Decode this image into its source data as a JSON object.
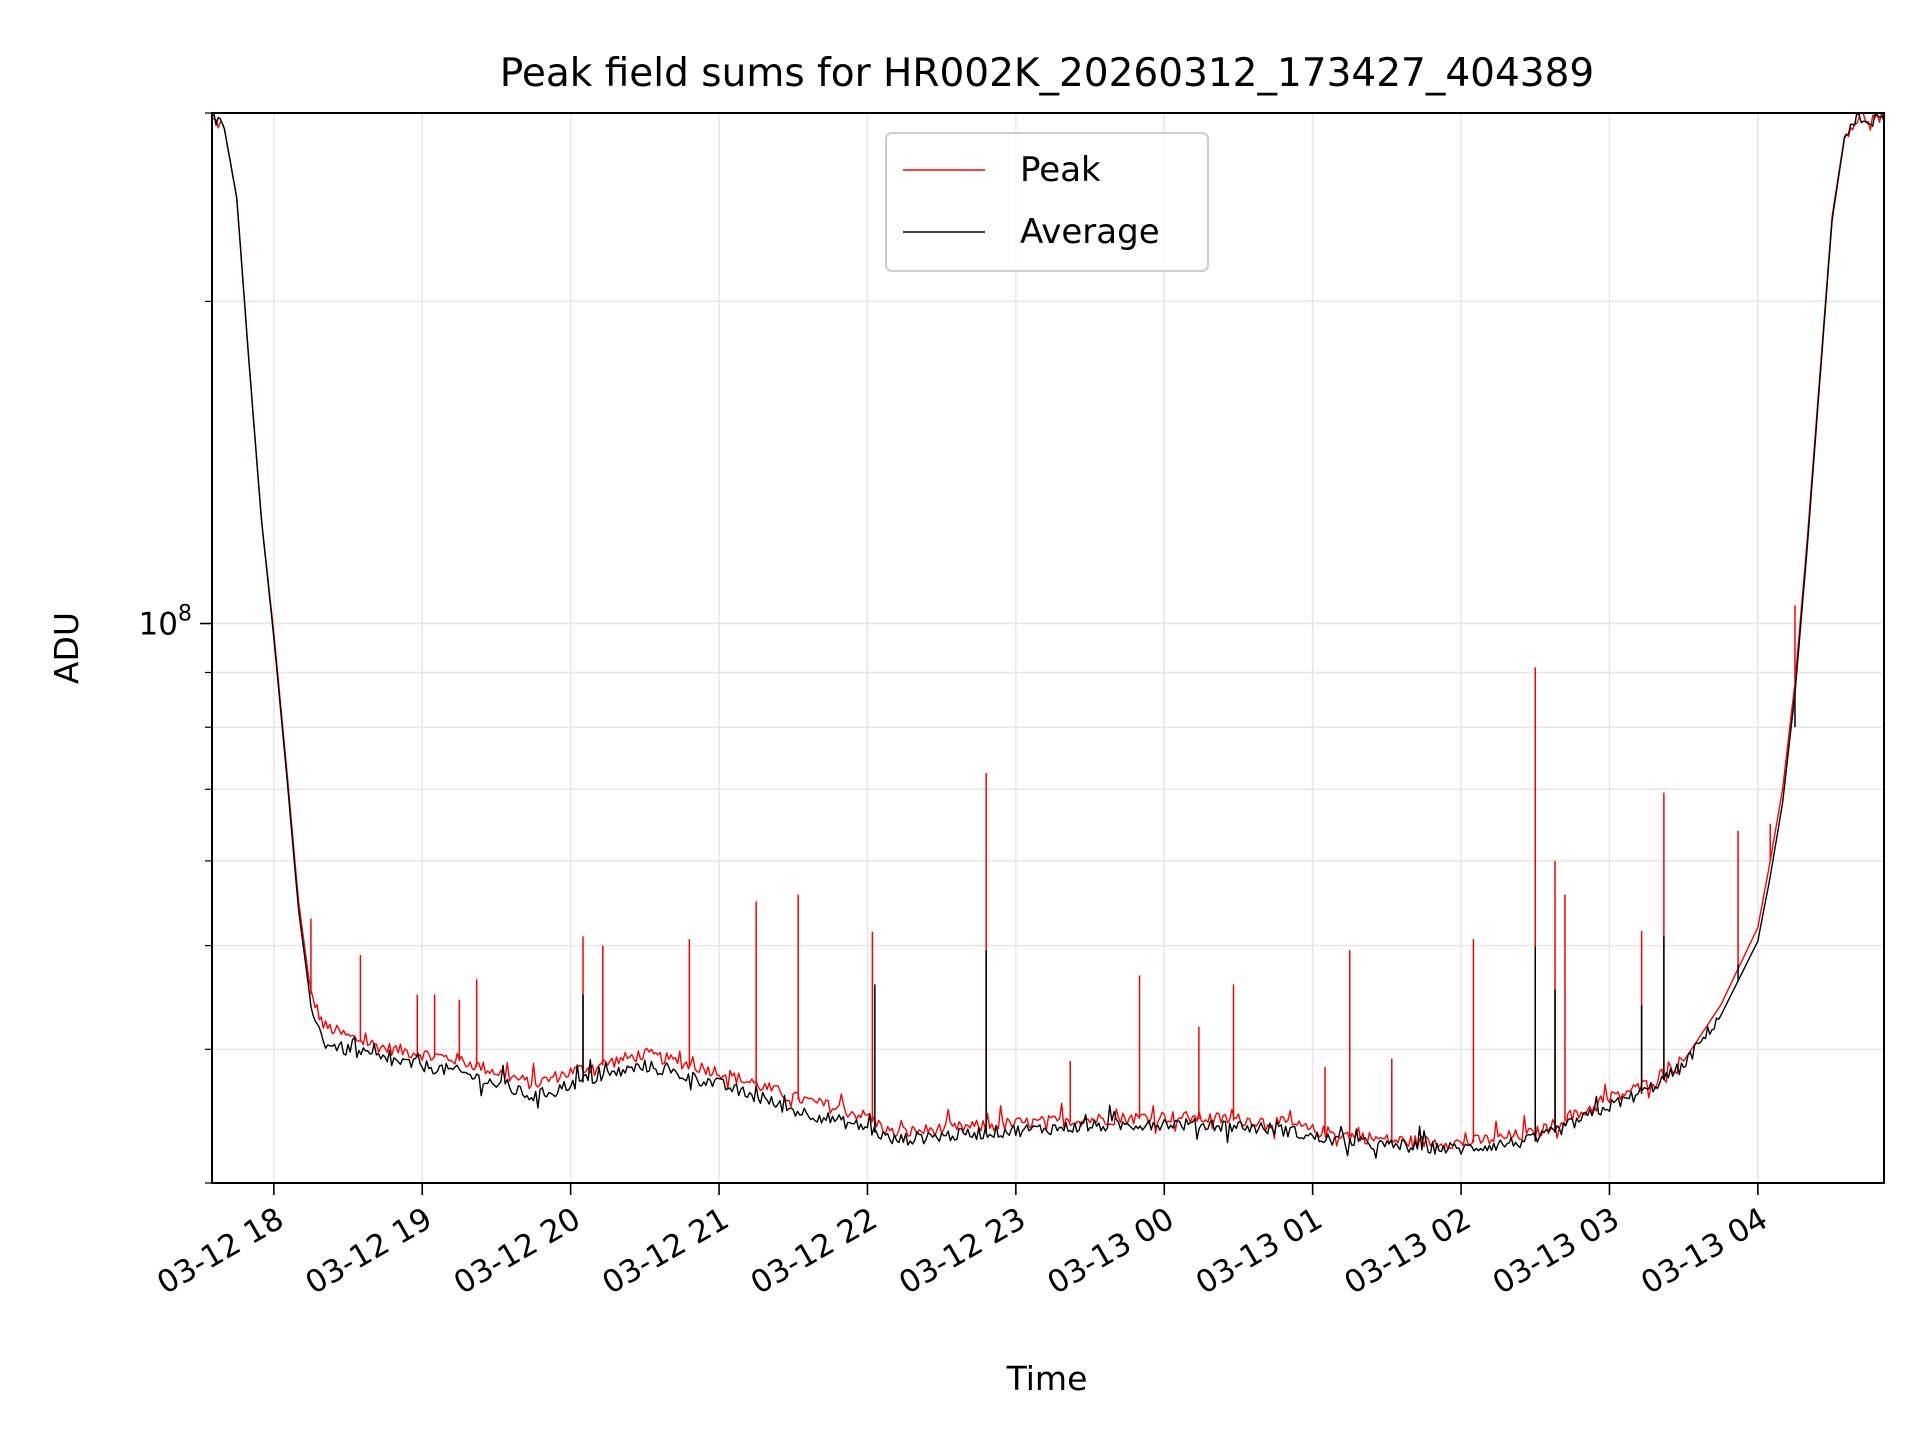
{
  "chart_data": {
    "type": "line",
    "title": "Peak field sums for HR002K_20260312_173427_404389",
    "xlabel": "Time",
    "ylabel": "ADU",
    "y_scale": "log",
    "ylim": [
      30000000,
      300000000
    ],
    "xlim": [
      "2026-03-12 17:35",
      "2026-03-13 04:51"
    ],
    "x_ticks": [
      {
        "t": "2026-03-12 18:00",
        "label": "03-12 18"
      },
      {
        "t": "2026-03-12 19:00",
        "label": "03-12 19"
      },
      {
        "t": "2026-03-12 20:00",
        "label": "03-12 20"
      },
      {
        "t": "2026-03-12 21:00",
        "label": "03-12 21"
      },
      {
        "t": "2026-03-12 22:00",
        "label": "03-12 22"
      },
      {
        "t": "2026-03-12 23:00",
        "label": "03-12 23"
      },
      {
        "t": "2026-03-13 00:00",
        "label": "03-13 00"
      },
      {
        "t": "2026-03-13 01:00",
        "label": "03-13 01"
      },
      {
        "t": "2026-03-13 02:00",
        "label": "03-13 02"
      },
      {
        "t": "2026-03-13 03:00",
        "label": "03-13 03"
      },
      {
        "t": "2026-03-13 04:00",
        "label": "03-13 04"
      }
    ],
    "y_tick_labels": [
      {
        "value": 100000000,
        "label": "10^8",
        "mantissa": "10",
        "exponent": "8"
      }
    ],
    "grid": true,
    "legend_position": "top-center",
    "series": [
      {
        "name": "Peak",
        "color": "#ff0000",
        "points": [
          [
            "2026-03-12 17:35",
            295000000
          ],
          [
            "2026-03-12 17:40",
            290000000
          ],
          [
            "2026-03-12 17:45",
            250000000
          ],
          [
            "2026-03-12 17:50",
            175000000
          ],
          [
            "2026-03-12 17:55",
            125000000
          ],
          [
            "2026-03-12 18:00",
            98000000
          ],
          [
            "2026-03-12 18:05",
            74000000
          ],
          [
            "2026-03-12 18:10",
            55000000
          ],
          [
            "2026-03-12 18:15",
            45000000
          ],
          [
            "2026-03-12 18:20",
            42000000
          ],
          [
            "2026-03-12 18:30",
            41000000
          ],
          [
            "2026-03-12 18:45",
            40000000
          ],
          [
            "2026-03-12 19:00",
            39500000
          ],
          [
            "2026-03-12 19:15",
            39000000
          ],
          [
            "2026-03-12 19:30",
            38000000
          ],
          [
            "2026-03-12 19:45",
            37000000
          ],
          [
            "2026-03-12 20:00",
            38000000
          ],
          [
            "2026-03-12 20:30",
            39500000
          ],
          [
            "2026-03-12 21:00",
            38000000
          ],
          [
            "2026-03-12 21:30",
            36000000
          ],
          [
            "2026-03-12 22:00",
            34500000
          ],
          [
            "2026-03-12 22:10",
            33300000
          ],
          [
            "2026-03-12 22:30",
            33600000
          ],
          [
            "2026-03-12 23:00",
            34000000
          ],
          [
            "2026-03-12 23:30",
            34300000
          ],
          [
            "2026-03-13 00:00",
            34500000
          ],
          [
            "2026-03-13 00:30",
            34300000
          ],
          [
            "2026-03-13 00:50",
            34000000
          ],
          [
            "2026-03-13 01:00",
            33500000
          ],
          [
            "2026-03-13 01:30",
            32800000
          ],
          [
            "2026-03-13 02:00",
            32600000
          ],
          [
            "2026-03-13 02:30",
            33300000
          ],
          [
            "2026-03-13 02:45",
            34500000
          ],
          [
            "2026-03-13 03:00",
            35800000
          ],
          [
            "2026-03-13 03:15",
            37000000
          ],
          [
            "2026-03-13 03:30",
            39000000
          ],
          [
            "2026-03-13 03:45",
            44000000
          ],
          [
            "2026-03-13 04:00",
            52000000
          ],
          [
            "2026-03-13 04:05",
            60000000
          ],
          [
            "2026-03-13 04:10",
            70000000
          ],
          [
            "2026-03-13 04:15",
            88000000
          ],
          [
            "2026-03-13 04:20",
            120000000
          ],
          [
            "2026-03-13 04:25",
            170000000
          ],
          [
            "2026-03-13 04:30",
            240000000
          ],
          [
            "2026-03-13 04:35",
            285000000
          ],
          [
            "2026-03-13 04:40",
            295000000
          ],
          [
            "2026-03-13 04:51",
            296000000
          ]
        ],
        "spikes": [
          [
            "2026-03-12 18:15",
            53000000
          ],
          [
            "2026-03-12 18:35",
            49000000
          ],
          [
            "2026-03-12 18:58",
            45000000
          ],
          [
            "2026-03-12 19:05",
            45000000
          ],
          [
            "2026-03-12 19:15",
            44500000
          ],
          [
            "2026-03-12 19:22",
            46500000
          ],
          [
            "2026-03-12 20:05",
            51000000
          ],
          [
            "2026-03-12 20:13",
            50000000
          ],
          [
            "2026-03-12 20:48",
            50700000
          ],
          [
            "2026-03-12 21:15",
            55000000
          ],
          [
            "2026-03-12 21:32",
            55800000
          ],
          [
            "2026-03-12 22:02",
            51500000
          ],
          [
            "2026-03-12 22:48",
            72500000
          ],
          [
            "2026-03-12 23:22",
            39000000
          ],
          [
            "2026-03-12 23:50",
            46900000
          ],
          [
            "2026-03-13 00:14",
            42000000
          ],
          [
            "2026-03-13 00:28",
            46000000
          ],
          [
            "2026-03-13 01:05",
            38500000
          ],
          [
            "2026-03-13 01:15",
            49500000
          ],
          [
            "2026-03-13 01:32",
            39200000
          ],
          [
            "2026-03-13 02:05",
            50700000
          ],
          [
            "2026-03-13 02:30",
            91000000
          ],
          [
            "2026-03-13 02:38",
            60000000
          ],
          [
            "2026-03-13 02:42",
            55800000
          ],
          [
            "2026-03-13 03:13",
            51600000
          ],
          [
            "2026-03-13 03:22",
            69500000
          ],
          [
            "2026-03-13 03:52",
            64000000
          ],
          [
            "2026-03-13 04:05",
            65000000
          ],
          [
            "2026-03-13 04:15",
            104000000
          ]
        ]
      },
      {
        "name": "Average",
        "color": "#000000",
        "points": [
          [
            "2026-03-12 17:35",
            295000000
          ],
          [
            "2026-03-12 17:40",
            290000000
          ],
          [
            "2026-03-12 17:45",
            250000000
          ],
          [
            "2026-03-12 17:50",
            175000000
          ],
          [
            "2026-03-12 17:55",
            125000000
          ],
          [
            "2026-03-12 18:00",
            97000000
          ],
          [
            "2026-03-12 18:05",
            73000000
          ],
          [
            "2026-03-12 18:10",
            54000000
          ],
          [
            "2026-03-12 18:15",
            44000000
          ],
          [
            "2026-03-12 18:20",
            40500000
          ],
          [
            "2026-03-12 18:30",
            39800000
          ],
          [
            "2026-03-12 18:45",
            39000000
          ],
          [
            "2026-03-12 19:00",
            38500000
          ],
          [
            "2026-03-12 19:15",
            38000000
          ],
          [
            "2026-03-12 19:30",
            37000000
          ],
          [
            "2026-03-12 19:45",
            36000000
          ],
          [
            "2026-03-12 20:00",
            37000000
          ],
          [
            "2026-03-12 20:30",
            38500000
          ],
          [
            "2026-03-12 21:00",
            37000000
          ],
          [
            "2026-03-12 21:30",
            35000000
          ],
          [
            "2026-03-12 22:00",
            33700000
          ],
          [
            "2026-03-12 22:10",
            32800000
          ],
          [
            "2026-03-12 22:30",
            33100000
          ],
          [
            "2026-03-12 23:00",
            33500000
          ],
          [
            "2026-03-12 23:30",
            33800000
          ],
          [
            "2026-03-13 00:00",
            34000000
          ],
          [
            "2026-03-13 00:30",
            33800000
          ],
          [
            "2026-03-13 00:50",
            33500000
          ],
          [
            "2026-03-13 01:00",
            33000000
          ],
          [
            "2026-03-13 01:30",
            32400000
          ],
          [
            "2026-03-13 02:00",
            32200000
          ],
          [
            "2026-03-13 02:30",
            32800000
          ],
          [
            "2026-03-13 02:45",
            34000000
          ],
          [
            "2026-03-13 03:00",
            35300000
          ],
          [
            "2026-03-13 03:15",
            36500000
          ],
          [
            "2026-03-13 03:30",
            38500000
          ],
          [
            "2026-03-13 03:45",
            43000000
          ],
          [
            "2026-03-13 04:00",
            50500000
          ],
          [
            "2026-03-13 04:05",
            58000000
          ],
          [
            "2026-03-13 04:10",
            68000000
          ],
          [
            "2026-03-13 04:15",
            86000000
          ],
          [
            "2026-03-13 04:20",
            118000000
          ],
          [
            "2026-03-13 04:25",
            168000000
          ],
          [
            "2026-03-13 04:30",
            238000000
          ],
          [
            "2026-03-13 04:35",
            284000000
          ],
          [
            "2026-03-13 04:40",
            294000000
          ],
          [
            "2026-03-13 04:51",
            295000000
          ]
        ],
        "spikes": [
          [
            "2026-03-12 20:05",
            45000000
          ],
          [
            "2026-03-12 22:03",
            46000000
          ],
          [
            "2026-03-12 22:48",
            49500000
          ],
          [
            "2026-03-13 02:30",
            49900000
          ],
          [
            "2026-03-13 02:38",
            45500000
          ],
          [
            "2026-03-13 03:13",
            44000000
          ],
          [
            "2026-03-13 03:22",
            51000000
          ],
          [
            "2026-03-13 03:52",
            48000000
          ],
          [
            "2026-03-13 04:15",
            80000000
          ]
        ]
      }
    ]
  }
}
